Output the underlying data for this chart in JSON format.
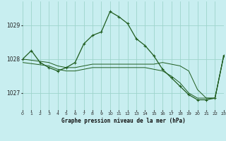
{
  "title": "Graphe pression niveau de la mer (hPa)",
  "bg_color": "#c8eef0",
  "grid_color": "#9dd4cc",
  "line_color": "#1e5c1e",
  "x_ticks": [
    0,
    1,
    2,
    3,
    4,
    5,
    6,
    7,
    8,
    9,
    10,
    11,
    12,
    13,
    14,
    15,
    16,
    17,
    18,
    19,
    20,
    21,
    22,
    23
  ],
  "y_ticks": [
    1027,
    1028,
    1029
  ],
  "xlim": [
    0,
    23
  ],
  "ylim": [
    1026.5,
    1029.7
  ],
  "series": [
    {
      "x": [
        0,
        1,
        2,
        3,
        4,
        5,
        6,
        7,
        8,
        9,
        10,
        11,
        12,
        13,
        14,
        15,
        16,
        17,
        18,
        19,
        20,
        21,
        22,
        23
      ],
      "y": [
        1028.0,
        1028.25,
        1027.9,
        1027.75,
        1027.65,
        1027.75,
        1027.9,
        1028.45,
        1028.7,
        1028.8,
        1029.4,
        1029.25,
        1029.05,
        1028.6,
        1028.4,
        1028.1,
        1027.7,
        1027.45,
        1027.2,
        1026.95,
        1026.8,
        1026.8,
        1026.85,
        1028.1
      ],
      "marker": true
    },
    {
      "x": [
        0,
        3,
        4,
        5,
        6,
        7,
        8,
        9,
        10,
        11,
        12,
        13,
        14,
        15,
        16,
        17,
        18,
        19,
        20,
        21,
        22,
        23
      ],
      "y": [
        1028.0,
        1027.9,
        1027.8,
        1027.75,
        1027.75,
        1027.8,
        1027.85,
        1027.85,
        1027.85,
        1027.85,
        1027.85,
        1027.85,
        1027.85,
        1027.85,
        1027.9,
        1027.85,
        1027.8,
        1027.65,
        1027.1,
        1026.85,
        1026.85,
        1028.1
      ],
      "marker": false
    },
    {
      "x": [
        0,
        3,
        4,
        5,
        6,
        7,
        8,
        9,
        10,
        11,
        12,
        13,
        14,
        15,
        16,
        17,
        18,
        19,
        20,
        21,
        22,
        23
      ],
      "y": [
        1027.9,
        1027.8,
        1027.7,
        1027.65,
        1027.65,
        1027.7,
        1027.75,
        1027.75,
        1027.75,
        1027.75,
        1027.75,
        1027.75,
        1027.75,
        1027.7,
        1027.65,
        1027.5,
        1027.3,
        1027.0,
        1026.85,
        1026.85,
        1026.85,
        1028.1
      ],
      "marker": false
    }
  ]
}
